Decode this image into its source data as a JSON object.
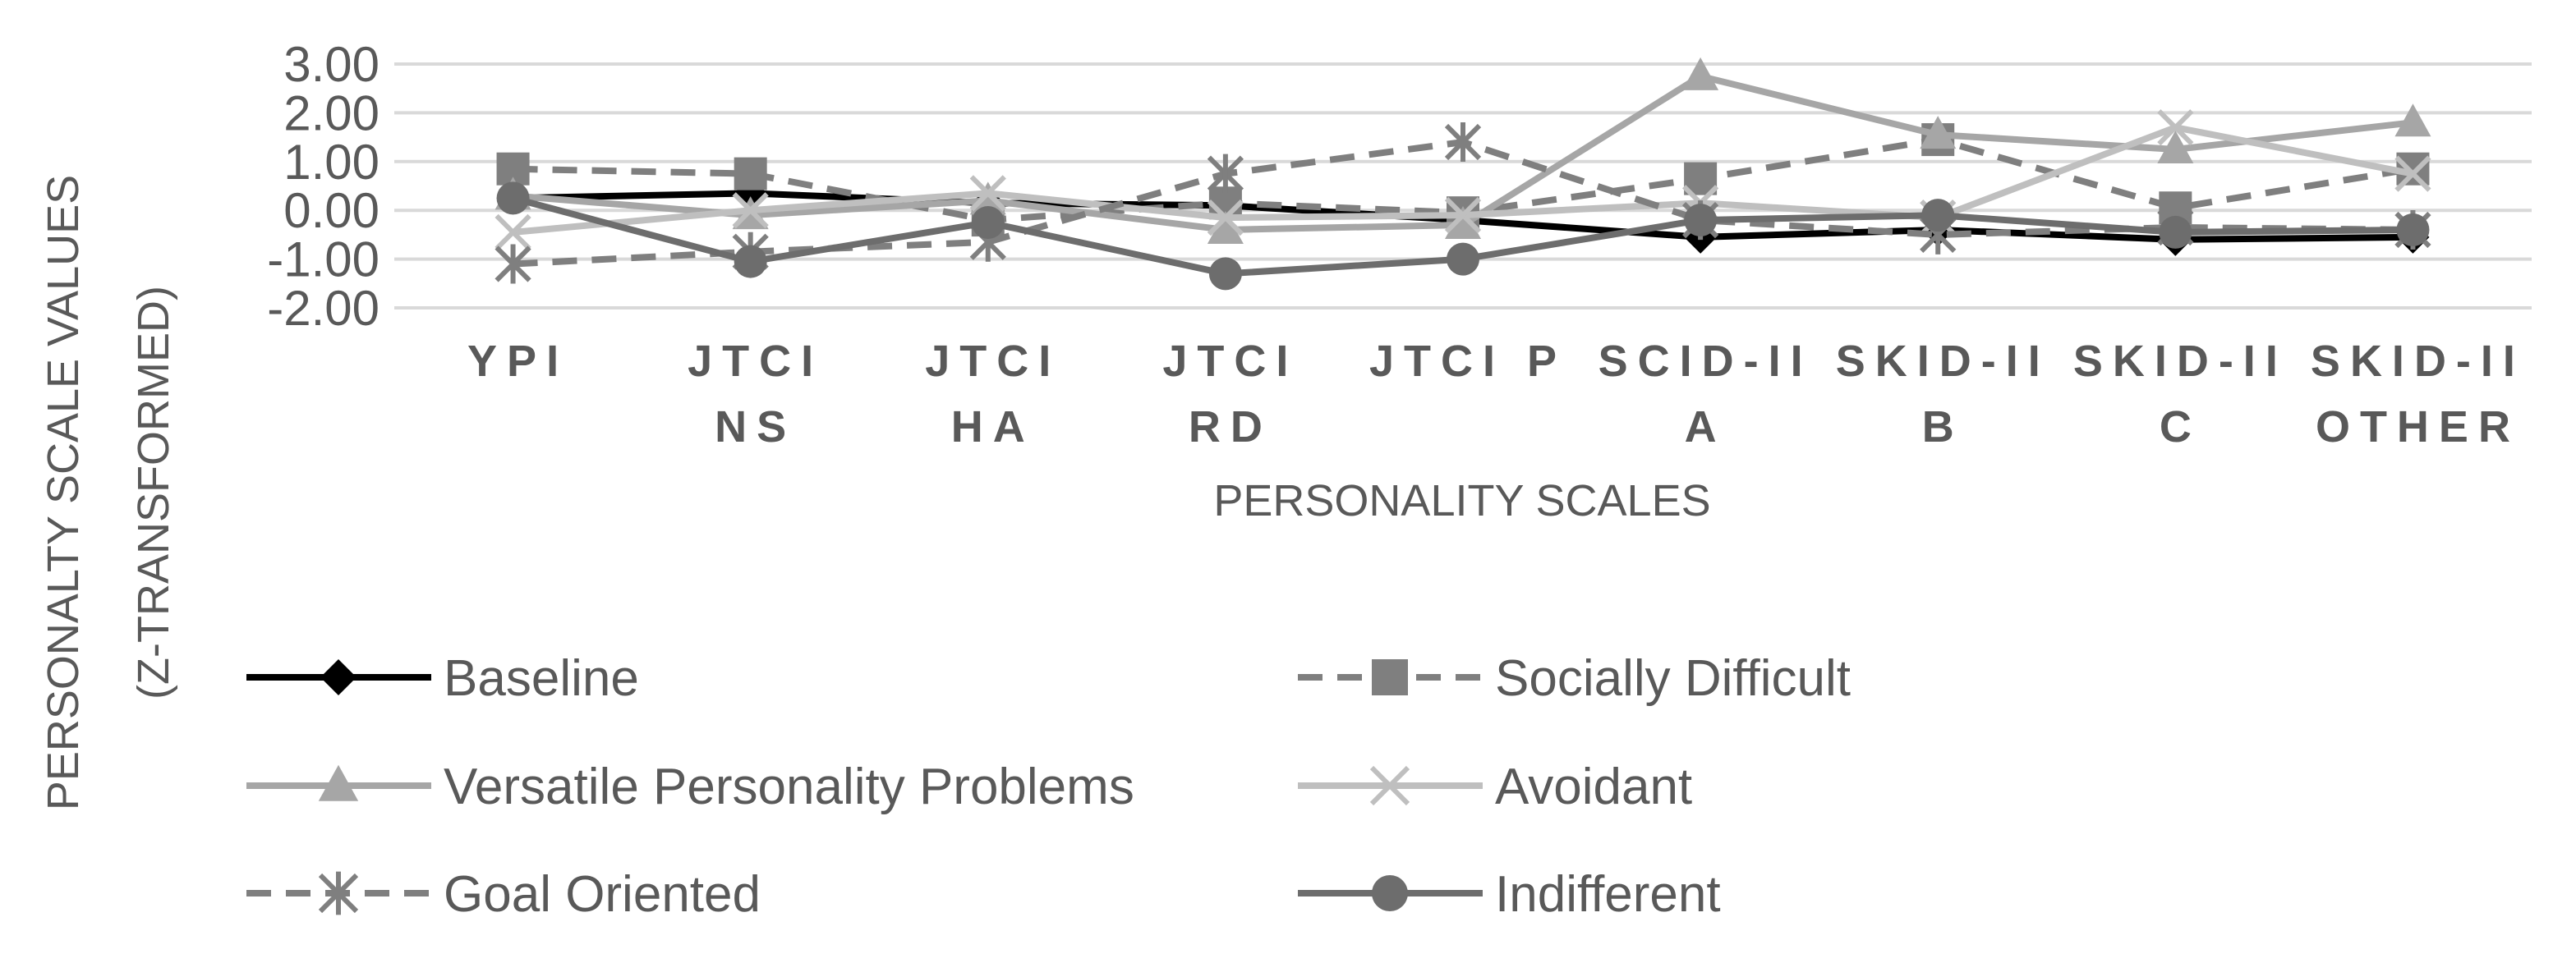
{
  "chart_data": {
    "type": "line",
    "title": "",
    "xlabel": "PERSONALITY SCALES",
    "ylabel_lines": [
      "PERSONALTY SCALE VALUES",
      "(Z-TRANSFORMED)"
    ],
    "ylim": [
      -2,
      3
    ],
    "yticks": [
      "3.00",
      "2.00",
      "1.00",
      "0.00",
      "-1.00",
      "-2.00"
    ],
    "categories": [
      "YPI",
      "JTCI NS",
      "JTCI HA",
      "JTCI RD",
      "JTCI P",
      "SCID-II A",
      "SKID-II B",
      "SKID-II C",
      "SKID-II OTHER"
    ],
    "category_lines": [
      [
        "YPI"
      ],
      [
        "JTCI",
        "NS"
      ],
      [
        "JTCI",
        "HA"
      ],
      [
        "JTCI",
        "RD"
      ],
      [
        "JTCI P"
      ],
      [
        "SCID-II",
        "A"
      ],
      [
        "SKID-II",
        "B"
      ],
      [
        "SKID-II",
        "C"
      ],
      [
        "SKID-II",
        "OTHER"
      ]
    ],
    "grid": true,
    "legend_position": "bottom",
    "series": [
      {
        "name": "Baseline",
        "color": "#000000",
        "dash": "solid",
        "marker": "diamond",
        "values": [
          0.25,
          0.35,
          0.15,
          0.1,
          -0.2,
          -0.55,
          -0.4,
          -0.6,
          -0.55
        ]
      },
      {
        "name": "Socially Difficult",
        "color": "#7f7f7f",
        "dash": "dashed",
        "marker": "square",
        "values": [
          0.85,
          0.75,
          -0.2,
          0.15,
          -0.05,
          0.65,
          1.45,
          0.05,
          0.85
        ]
      },
      {
        "name": "Versatile Personality Problems",
        "color": "#a6a6a6",
        "dash": "solid",
        "marker": "triangle",
        "values": [
          0.3,
          -0.1,
          0.2,
          -0.4,
          -0.3,
          2.75,
          1.55,
          1.25,
          1.8
        ]
      },
      {
        "name": "Avoidant",
        "color": "#bfbfbf",
        "dash": "solid",
        "marker": "x",
        "values": [
          -0.45,
          0.0,
          0.35,
          -0.15,
          -0.1,
          0.15,
          -0.15,
          1.7,
          0.75
        ]
      },
      {
        "name": "Goal Oriented",
        "color": "#7f7f7f",
        "dash": "dashed",
        "marker": "asterisk",
        "values": [
          -1.1,
          -0.85,
          -0.65,
          0.75,
          1.4,
          -0.2,
          -0.5,
          -0.35,
          -0.4
        ]
      },
      {
        "name": "Indifferent",
        "color": "#6d6d6d",
        "dash": "solid",
        "marker": "circle",
        "values": [
          0.25,
          -1.05,
          -0.25,
          -1.3,
          -1.0,
          -0.2,
          -0.1,
          -0.45,
          -0.4
        ]
      }
    ]
  }
}
